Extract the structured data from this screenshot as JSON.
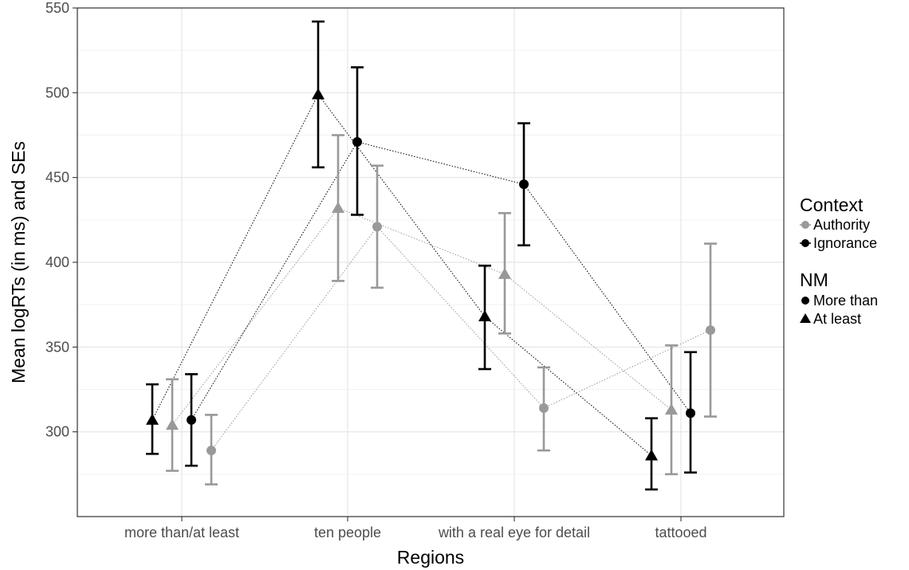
{
  "chart_data": {
    "type": "line",
    "xlabel": "Regions",
    "ylabel": "Mean logRTs (in ms) and SEs",
    "categories": [
      "more than/at least",
      "ten people",
      "with a real eye for detail",
      "tattooed"
    ],
    "ylim": [
      250,
      550
    ],
    "yticks": [
      300,
      350,
      400,
      450,
      500,
      550
    ],
    "grid": true,
    "legend_position": "right",
    "legend": {
      "context_title": "Context",
      "context_items": [
        {
          "label": "Authority",
          "color": "#999999"
        },
        {
          "label": "Ignorance",
          "color": "#000000"
        }
      ],
      "nm_title": "NM",
      "nm_items": [
        {
          "label": "More than",
          "shape": "circle"
        },
        {
          "label": "At least",
          "shape": "triangle"
        }
      ]
    },
    "series": [
      {
        "context": "Ignorance",
        "nm": "At least",
        "color": "#000000",
        "shape": "triangle",
        "values": [
          307,
          499,
          368,
          286
        ],
        "lower": [
          287,
          456,
          337,
          266
        ],
        "upper": [
          328,
          542,
          398,
          308
        ]
      },
      {
        "context": "Authority",
        "nm": "At least",
        "color": "#999999",
        "shape": "triangle",
        "values": [
          304,
          432,
          393,
          313
        ],
        "lower": [
          277,
          389,
          358,
          275
        ],
        "upper": [
          331,
          475,
          429,
          351
        ]
      },
      {
        "context": "Ignorance",
        "nm": "More than",
        "color": "#000000",
        "shape": "circle",
        "values": [
          307,
          471,
          446,
          311
        ],
        "lower": [
          280,
          428,
          410,
          276
        ],
        "upper": [
          334,
          515,
          482,
          347
        ]
      },
      {
        "context": "Authority",
        "nm": "More than",
        "color": "#999999",
        "shape": "circle",
        "values": [
          289,
          421,
          314,
          360
        ],
        "lower": [
          269,
          385,
          289,
          309
        ],
        "upper": [
          310,
          457,
          338,
          411
        ]
      }
    ]
  }
}
